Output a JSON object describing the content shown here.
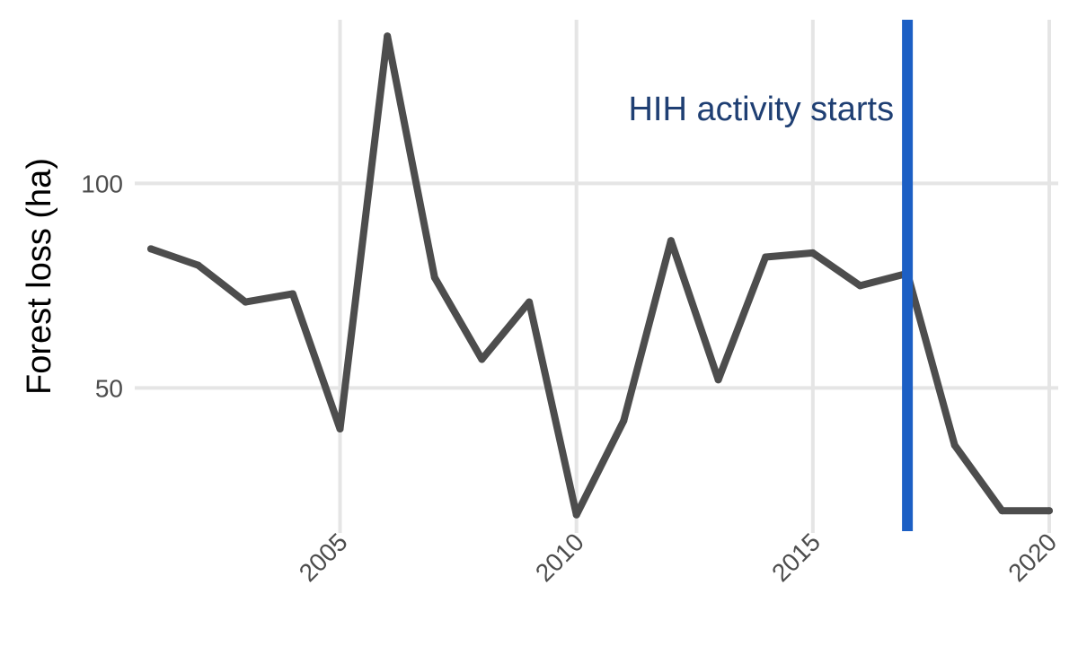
{
  "chart_data": {
    "type": "line",
    "title": "",
    "xlabel": "",
    "ylabel": "Forest loss (ha)",
    "x": [
      2001,
      2002,
      2003,
      2004,
      2005,
      2006,
      2007,
      2008,
      2009,
      2010,
      2011,
      2012,
      2013,
      2014,
      2015,
      2016,
      2017,
      2018,
      2019,
      2020
    ],
    "series": [
      {
        "values": [
          84,
          80,
          71,
          73,
          40,
          136,
          77,
          57,
          71,
          19,
          42,
          86,
          52,
          82,
          83,
          75,
          78,
          36,
          20,
          20
        ],
        "color": "#4d4d4d"
      }
    ],
    "xlim": [
      2001,
      2020
    ],
    "ylim": [
      15,
      140
    ],
    "x_ticks": [
      2005,
      2010,
      2015,
      2020
    ],
    "x_tick_labels": [
      "2005",
      "2010",
      "2015",
      "2020"
    ],
    "y_ticks": [
      50,
      100
    ],
    "y_tick_labels": [
      "50",
      "100"
    ],
    "grid": true,
    "legend": "none",
    "annotations": [
      {
        "type": "vline",
        "x": 2017,
        "label": "HIH activity starts",
        "line_color": "#1c5fc4",
        "text_color": "#1f3f73"
      }
    ]
  }
}
